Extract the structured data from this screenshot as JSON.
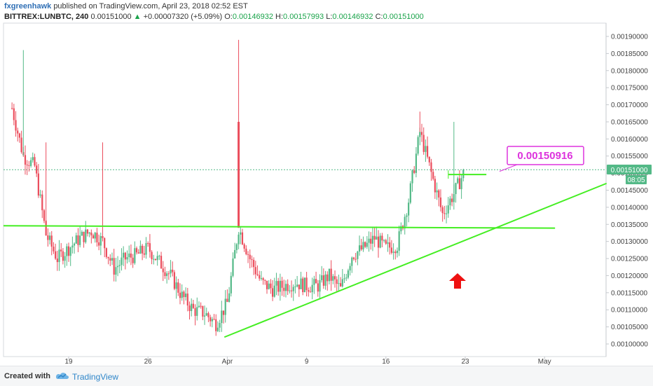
{
  "header": {
    "author": "fxgreenhawk",
    "published": "published on TradingView.com, April 23, 2018 02:52 EST",
    "symbol": "BITTREX:LUNBTC, 240",
    "last": "0.00151000",
    "change": "+0.00007320 (+5.09%)",
    "o_label": "O:",
    "o_value": "0.00146932",
    "h_label": "H:",
    "h_value": "0.00157993",
    "l_label": "L:",
    "l_value": "0.00146932",
    "c_label": "C:",
    "c_value": "0.00151000"
  },
  "price_tag": {
    "value": "0.00151000",
    "time": "08:05"
  },
  "annotation_label": "0.00150916",
  "footer": {
    "created_with": "Created with",
    "brand": "TradingView"
  },
  "colors": {
    "up": "#53b987",
    "down": "#eb4d5c",
    "trendline": "#44ee22",
    "callout": "#dd33dd",
    "arrow": "#ee1111",
    "price_tag": "#53b987"
  },
  "chart_data": {
    "type": "candlestick",
    "title": "",
    "xlabel": "",
    "ylabel": "",
    "x_ticks": [
      "19",
      "26",
      "Apr",
      "9",
      "16",
      "23",
      "May"
    ],
    "y_ticks": [
      "0.00100000",
      "0.00105000",
      "0.00110000",
      "0.00115000",
      "0.00120000",
      "0.00125000",
      "0.00130000",
      "0.00135000",
      "0.00140000",
      "0.00145000",
      "0.00150000",
      "0.00155000",
      "0.00160000",
      "0.00165000",
      "0.00170000",
      "0.00175000",
      "0.00180000",
      "0.00185000",
      "0.00190000"
    ],
    "ylim": [
      0.00097,
      0.00195
    ],
    "current_price": 0.00151,
    "grid": false,
    "candle_anchors": [
      [
        "Mar 14",
        0.00169
      ],
      [
        "Mar 15",
        0.00155
      ],
      [
        "Mar 16",
        0.00152
      ],
      [
        "Mar 17",
        0.00132
      ],
      [
        "Mar 18",
        0.00125
      ],
      [
        "Mar 19",
        0.00128
      ],
      [
        "Mar 20",
        0.00131
      ],
      [
        "Mar 21",
        0.00133
      ],
      [
        "Mar 22",
        0.0013
      ],
      [
        "Mar 23",
        0.00122
      ],
      [
        "Mar 24",
        0.00125
      ],
      [
        "Mar 25",
        0.00126
      ],
      [
        "Mar 26",
        0.00128
      ],
      [
        "Mar 27",
        0.00124
      ],
      [
        "Mar 28",
        0.0012
      ],
      [
        "Mar 29",
        0.00114
      ],
      [
        "Mar 30",
        0.0011
      ],
      [
        "Mar 31",
        0.00109
      ],
      [
        "Apr 1",
        0.00106
      ],
      [
        "Apr 2",
        0.00112
      ],
      [
        "Apr 3",
        0.00134
      ],
      [
        "Apr 4",
        0.00125
      ],
      [
        "Apr 5",
        0.00118
      ],
      [
        "Apr 6",
        0.00116
      ],
      [
        "Apr 7",
        0.00117
      ],
      [
        "Apr 8",
        0.00118
      ],
      [
        "Apr 9",
        0.00117
      ],
      [
        "Apr 10",
        0.00117
      ],
      [
        "Apr 11",
        0.0012
      ],
      [
        "Apr 12",
        0.00116
      ],
      [
        "Apr 13",
        0.00126
      ],
      [
        "Apr 14",
        0.00128
      ],
      [
        "Apr 15",
        0.00131
      ],
      [
        "Apr 16",
        0.00128
      ],
      [
        "Apr 17",
        0.00129
      ],
      [
        "Apr 18",
        0.00142
      ],
      [
        "Apr 19",
        0.00162
      ],
      [
        "Apr 20",
        0.0015
      ],
      [
        "Apr 21",
        0.00138
      ],
      [
        "Apr 22",
        0.00144
      ],
      [
        "Apr 23",
        0.00151
      ]
    ],
    "spikes": [
      [
        "Mar 15",
        0.00186,
        "up"
      ],
      [
        "Mar 17",
        0.00159,
        "down"
      ],
      [
        "Mar 22",
        0.00159,
        "down"
      ],
      [
        "Apr 3",
        0.00189,
        "down"
      ],
      [
        "Apr 19",
        0.00168,
        "down"
      ],
      [
        "Apr 22",
        0.00165,
        "up"
      ]
    ],
    "annotations": {
      "horizontal_support": {
        "from": [
          "Mar 14",
          0.001346
        ],
        "to": [
          "Apr 30",
          0.001339
        ]
      },
      "rising_trendline": {
        "from": [
          "Apr 1",
          0.00102
        ],
        "to": [
          "May 3",
          0.00147
        ]
      },
      "resistance_segment": {
        "from": [
          "Apr 22",
          0.0015
        ],
        "to": [
          "Apr 24",
          0.0015
        ]
      },
      "callout_value": 0.00150916,
      "up_arrow_at": [
        "Apr 22",
        0.0012
      ]
    }
  }
}
